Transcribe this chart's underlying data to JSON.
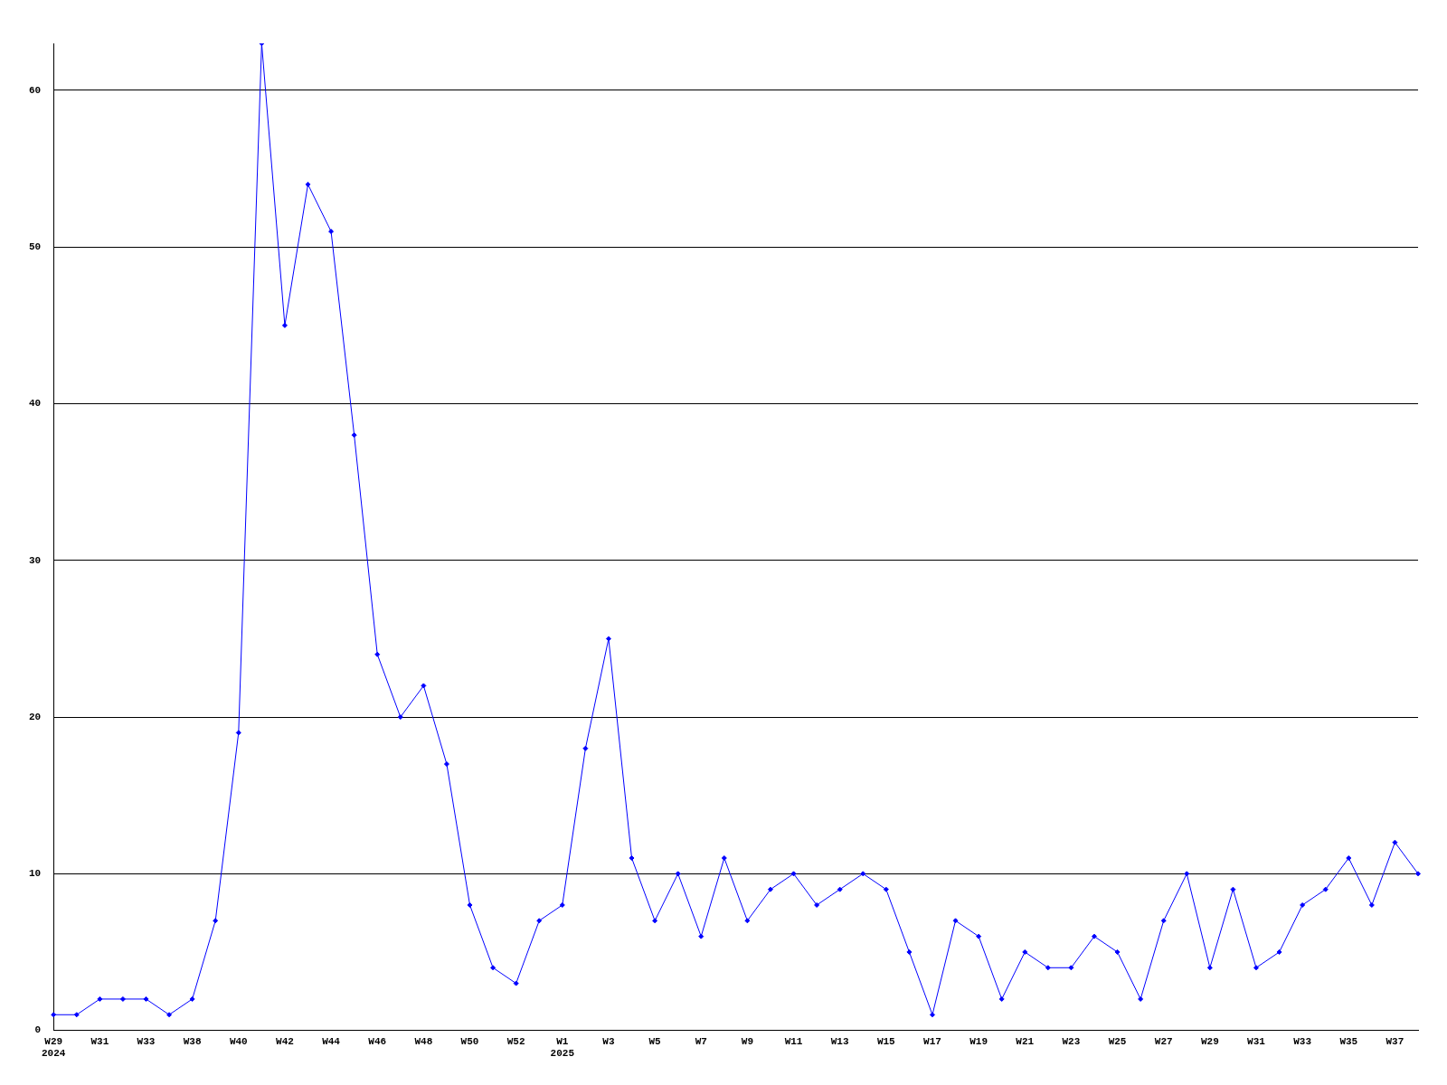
{
  "chart_data": {
    "type": "line",
    "categories": [
      "W29\n2024",
      null,
      "W31",
      null,
      "W33",
      null,
      "W38",
      null,
      "W40",
      null,
      "W42",
      null,
      "W44",
      null,
      "W46",
      null,
      "W48",
      null,
      "W50",
      null,
      "W52",
      null,
      "W1\n2025",
      null,
      "W3",
      null,
      "W5",
      null,
      "W7",
      null,
      "W9",
      null,
      "W11",
      null,
      "W13",
      null,
      "W15",
      null,
      "W17",
      null,
      "W19",
      null,
      "W21",
      null,
      "W23",
      null,
      "W25",
      null,
      "W27",
      null,
      "W29",
      null,
      "W31",
      null,
      "W33",
      null,
      "W35",
      null,
      "W37",
      null
    ],
    "series": [
      {
        "color": "#0000ff",
        "values": [
          1,
          1,
          2,
          2,
          2,
          1,
          2,
          7,
          19,
          63,
          45,
          54,
          51,
          38,
          24,
          20,
          22,
          17,
          8,
          4,
          3,
          7,
          8,
          18,
          25,
          11,
          7,
          10,
          6,
          11,
          7,
          9,
          10,
          8,
          9,
          10,
          9,
          5,
          1,
          7,
          6,
          2,
          5,
          4,
          4,
          6,
          5,
          2,
          7,
          10,
          4,
          9,
          4,
          5,
          8,
          9,
          11,
          8,
          12,
          10
        ]
      }
    ],
    "ylim": [
      0,
      63
    ],
    "yticks": [
      0,
      10,
      20,
      30,
      40,
      50,
      60
    ],
    "grid": "y",
    "legend": false,
    "marker": "diamond",
    "line_style": "solid"
  }
}
